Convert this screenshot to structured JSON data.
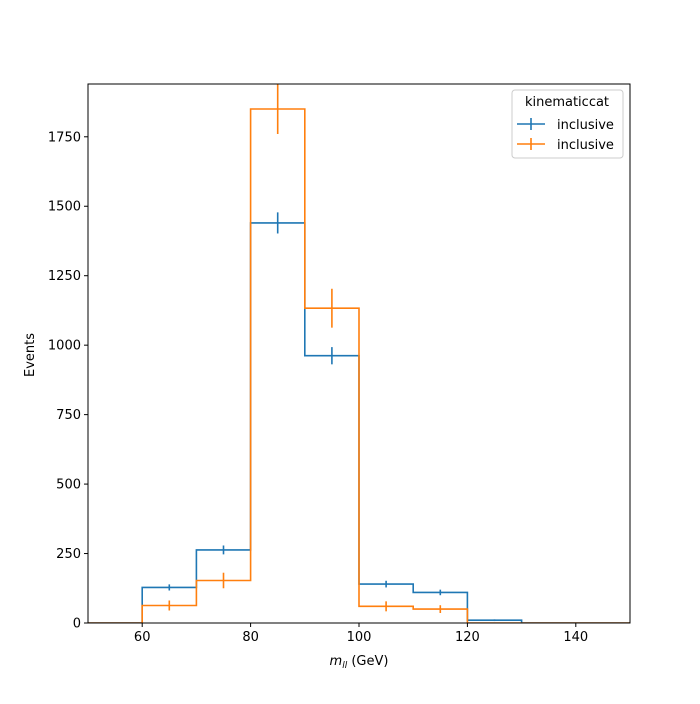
{
  "chart_data": {
    "type": "histogram-step",
    "xlabel_math": "m",
    "xlabel_sub": "ll",
    "xlabel_unit": " (GeV)",
    "ylabel": "Events",
    "xlim": [
      50,
      150
    ],
    "ylim": [
      0,
      1940
    ],
    "xticks": [
      60,
      80,
      100,
      120,
      140
    ],
    "yticks": [
      0,
      250,
      500,
      750,
      1000,
      1250,
      1500,
      1750
    ],
    "bin_edges": [
      50,
      60,
      70,
      80,
      90,
      100,
      110,
      120,
      130,
      140,
      150
    ],
    "legend": {
      "title": "kinematiccat",
      "placement": "upper right"
    },
    "series": [
      {
        "name": "inclusive",
        "color": "#1f77b4",
        "values": [
          0,
          128,
          263,
          1440,
          962,
          140,
          110,
          10,
          0,
          0
        ],
        "errors": [
          0,
          11,
          16,
          38,
          31,
          12,
          10,
          3,
          0,
          0
        ]
      },
      {
        "name": "inclusive",
        "color": "#ff7f0e",
        "values": [
          0,
          63,
          153,
          1850,
          1133,
          60,
          50,
          0,
          0,
          0
        ],
        "errors": [
          0,
          18,
          28,
          90,
          70,
          18,
          14,
          0,
          0,
          0
        ]
      }
    ]
  }
}
